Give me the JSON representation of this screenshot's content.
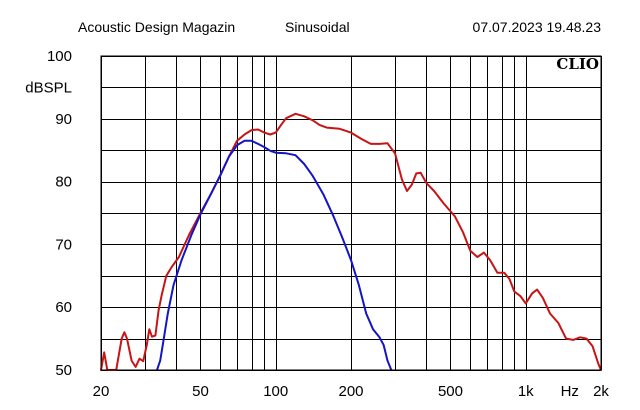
{
  "header": {
    "title": "Acoustic Design Magazin",
    "mode": "Sinusoidal",
    "datetime": "07.07.2023 19.48.23"
  },
  "brand": "CLIO",
  "chart_data": {
    "type": "line",
    "title": "",
    "ylabel": "dBSPL",
    "xlabel": "Hz",
    "xscale": "log",
    "xlim": [
      20,
      2000
    ],
    "ylim": [
      50,
      100
    ],
    "grid": true,
    "x_ticks": [
      {
        "value": 20,
        "label": "20"
      },
      {
        "value": 50,
        "label": "50"
      },
      {
        "value": 100,
        "label": "100"
      },
      {
        "value": 200,
        "label": "200"
      },
      {
        "value": 500,
        "label": "500"
      },
      {
        "value": 1000,
        "label": "1k"
      },
      {
        "value": 2000,
        "label": "2k"
      }
    ],
    "y_ticks": [
      {
        "value": 100,
        "label": "100"
      },
      {
        "value": 90,
        "label": "90"
      },
      {
        "value": 80,
        "label": "80"
      },
      {
        "value": 70,
        "label": "70"
      },
      {
        "value": 60,
        "label": "60"
      },
      {
        "value": 50,
        "label": "50"
      }
    ],
    "series": [
      {
        "color": "#c81414",
        "points": [
          [
            20,
            50
          ],
          [
            20.6,
            52.8
          ],
          [
            21.2,
            50
          ],
          [
            23,
            50
          ],
          [
            24.2,
            55
          ],
          [
            24.8,
            56
          ],
          [
            25.4,
            55
          ],
          [
            26.5,
            51.5
          ],
          [
            27.5,
            50.5
          ],
          [
            28.5,
            51.8
          ],
          [
            29.5,
            51.4
          ],
          [
            30.5,
            54
          ],
          [
            31.2,
            56.5
          ],
          [
            32,
            55.3
          ],
          [
            33,
            55.5
          ],
          [
            34,
            59.5
          ],
          [
            35,
            62
          ],
          [
            36.5,
            65
          ],
          [
            38.5,
            66.5
          ],
          [
            41,
            68
          ],
          [
            45,
            71.5
          ],
          [
            50,
            75
          ],
          [
            55,
            78
          ],
          [
            60,
            81
          ],
          [
            65,
            84
          ],
          [
            70,
            86.5
          ],
          [
            75,
            87.5
          ],
          [
            80,
            88.2
          ],
          [
            85,
            88.3
          ],
          [
            90,
            87.8
          ],
          [
            95,
            87.5
          ],
          [
            100,
            87.8
          ],
          [
            105,
            89
          ],
          [
            110,
            90.1
          ],
          [
            120,
            90.8
          ],
          [
            130,
            90.4
          ],
          [
            140,
            89.8
          ],
          [
            150,
            89
          ],
          [
            160,
            88.6
          ],
          [
            180,
            88.4
          ],
          [
            200,
            87.8
          ],
          [
            220,
            86.8
          ],
          [
            240,
            86
          ],
          [
            260,
            86
          ],
          [
            280,
            86.1
          ],
          [
            300,
            84.5
          ],
          [
            320,
            80.3
          ],
          [
            335,
            78.5
          ],
          [
            350,
            79.5
          ],
          [
            365,
            81.3
          ],
          [
            380,
            81.4
          ],
          [
            400,
            79.8
          ],
          [
            430,
            78.5
          ],
          [
            470,
            76.5
          ],
          [
            520,
            74.5
          ],
          [
            560,
            72
          ],
          [
            600,
            69
          ],
          [
            640,
            68
          ],
          [
            680,
            68.7
          ],
          [
            720,
            67.5
          ],
          [
            770,
            65.5
          ],
          [
            820,
            65.5
          ],
          [
            860,
            64.5
          ],
          [
            900,
            62.5
          ],
          [
            950,
            61.8
          ],
          [
            1000,
            60.6
          ],
          [
            1060,
            62.2
          ],
          [
            1110,
            62.8
          ],
          [
            1170,
            61.5
          ],
          [
            1250,
            59
          ],
          [
            1350,
            57.5
          ],
          [
            1450,
            55
          ],
          [
            1550,
            54.8
          ],
          [
            1650,
            55.2
          ],
          [
            1750,
            55
          ],
          [
            1850,
            53.8
          ],
          [
            1950,
            51
          ],
          [
            2000,
            50
          ]
        ]
      },
      {
        "color": "#1414c8",
        "points": [
          [
            33.5,
            50
          ],
          [
            34.5,
            51.5
          ],
          [
            35.5,
            54.5
          ],
          [
            37,
            59
          ],
          [
            39,
            63.5
          ],
          [
            42,
            67.5
          ],
          [
            46,
            71.5
          ],
          [
            50,
            74.8
          ],
          [
            55,
            78
          ],
          [
            60,
            81
          ],
          [
            65,
            84
          ],
          [
            70,
            85.8
          ],
          [
            75,
            86.5
          ],
          [
            80,
            86.5
          ],
          [
            85,
            86
          ],
          [
            90,
            85.5
          ],
          [
            95,
            84.9
          ],
          [
            100,
            84.6
          ],
          [
            110,
            84.5
          ],
          [
            120,
            84.2
          ],
          [
            130,
            82.8
          ],
          [
            140,
            81
          ],
          [
            155,
            78
          ],
          [
            170,
            74.5
          ],
          [
            185,
            71
          ],
          [
            200,
            67.5
          ],
          [
            215,
            63.5
          ],
          [
            230,
            59
          ],
          [
            245,
            56.5
          ],
          [
            260,
            55.2
          ],
          [
            270,
            54
          ],
          [
            280,
            51.5
          ],
          [
            290,
            50
          ]
        ]
      }
    ]
  }
}
